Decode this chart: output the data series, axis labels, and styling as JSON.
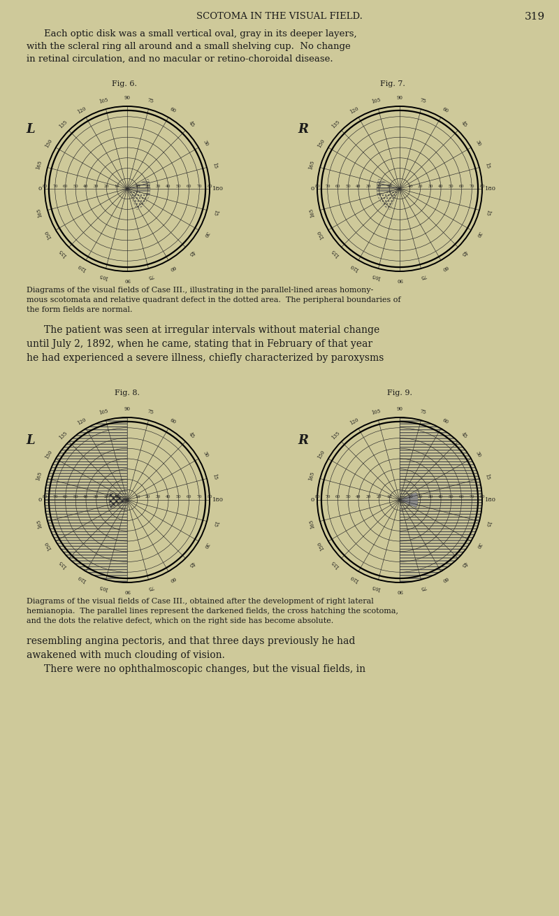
{
  "bg_color": "#cec99a",
  "page_title": "SCOTOMA IN THE VISUAL FIELD.",
  "page_number": "319",
  "para1_line1": "Each optic disk was a small vertical oval, gray in its deeper layers,",
  "para1_line2": "with the scleral ring all around and a small shelving cup.  No change",
  "para1_line3": "in retinal circulation, and no macular or retino-choroidal disease.",
  "fig6_title": "Fig. 6.",
  "fig7_title": "Fig. 7.",
  "fig8_title": "Fig. 8.",
  "fig9_title": "Fig. 9.",
  "fig6_label": "L",
  "fig7_label": "R",
  "fig8_label": "L",
  "fig9_label": "R",
  "cap1_line1": "Diagrams of the visual fields of Case III., illustrating in the parallel-lined areas homony-",
  "cap1_line2": "mous scotomata and relative quadrant defect in the dotted area.  The peripheral boundaries of",
  "cap1_line3": "the form fields are normal.",
  "para2_line1": "The patient was seen at irregular intervals without material change",
  "para2_line2": "until July 2, 1892, when he came, stating that in February of that year",
  "para2_line3": "he had experienced a severe illness, chiefly characterized by paroxysms",
  "cap2_line1": "Diagrams of the visual fields of Case III., obtained after the development of right lateral",
  "cap2_line2": "hemianopia.  The parallel lines represent the darkened fields, the cross hatching the scotoma,",
  "cap2_line3": "and the dots the relative defect, which on the right side has become absolute.",
  "para3_line1": "resembling angina pectoris, and that three days previously he had",
  "para3_line2": "awakened with much clouding of vision.",
  "para3_line3": "    There were no ophthalmoscopic changes, but the visual fields, in",
  "text_color": "#1a1a1a",
  "line_color": "#2a2a2a"
}
